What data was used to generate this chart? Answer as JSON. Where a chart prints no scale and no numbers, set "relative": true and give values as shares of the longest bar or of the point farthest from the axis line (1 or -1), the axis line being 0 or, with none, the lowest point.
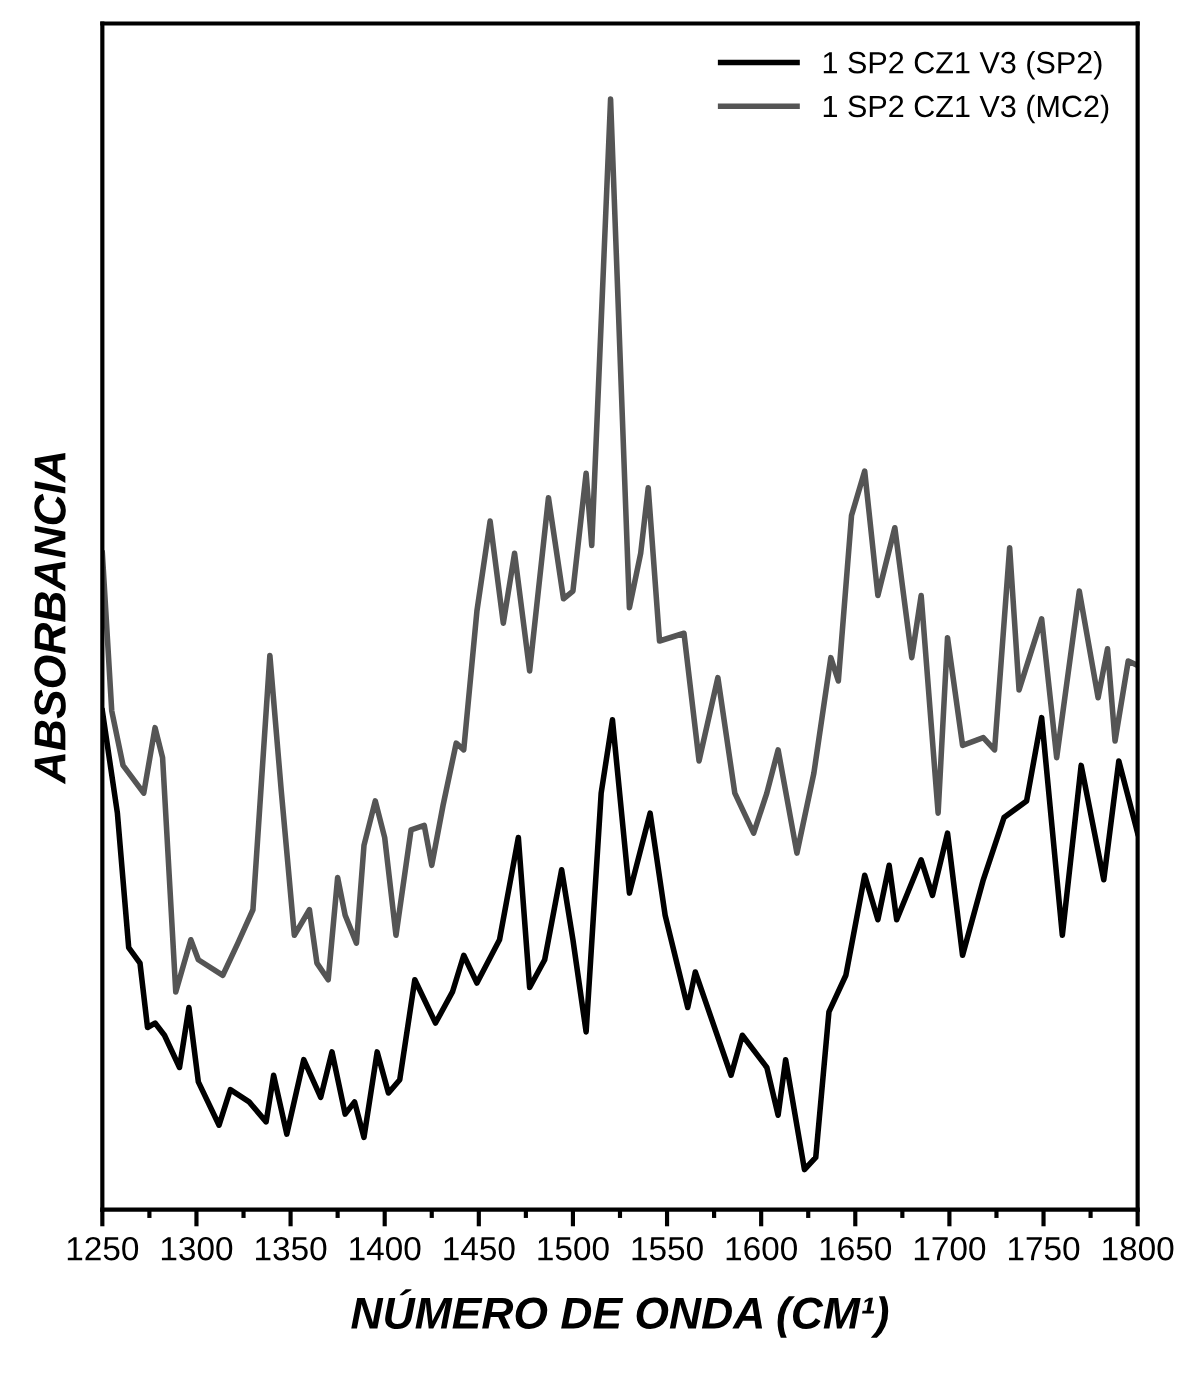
{
  "chart_data": {
    "type": "line",
    "relative": true,
    "xlabel": "NÚMERO DE ONDA (CM¹)",
    "ylabel": "ABSORBANCIA",
    "xlim": [
      1250,
      1800
    ],
    "xticks": [
      1250,
      {
        "value": 1275,
        "label": null
      },
      1300,
      {
        "value": 1325,
        "label": null
      },
      1350,
      {
        "value": 1375,
        "label": null
      },
      1400,
      {
        "value": 1425,
        "label": null
      },
      1450,
      {
        "value": 1475,
        "label": null
      },
      1500,
      {
        "value": 1525,
        "label": null
      },
      1550,
      {
        "value": 1575,
        "label": null
      },
      1600,
      {
        "value": 1625,
        "label": null
      },
      1650,
      {
        "value": 1675,
        "label": null
      },
      1700,
      {
        "value": 1725,
        "label": null
      },
      1750,
      {
        "value": 1775,
        "label": null
      },
      1800
    ],
    "legend": "top right",
    "grid": false,
    "marker": "none",
    "line_style": "solid",
    "series": [
      {
        "name": "1 SP2 CZ1 V3 (SP2)",
        "color": "#000000",
        "x": [
          1250,
          1258,
          1264,
          1270,
          1274,
          1278,
          1283,
          1291,
          1296,
          1301,
          1312,
          1318,
          1328,
          1337,
          1341,
          1348,
          1357,
          1366,
          1372,
          1379,
          1384,
          1389,
          1396,
          1402,
          1408,
          1416,
          1427,
          1436,
          1442,
          1449,
          1461,
          1471,
          1477,
          1485,
          1494,
          1500,
          1507,
          1515,
          1521,
          1530,
          1541,
          1549,
          1561,
          1565,
          1584,
          1590,
          1603,
          1609,
          1613,
          1623,
          1629,
          1636,
          1645,
          1655,
          1662,
          1668,
          1672,
          1685,
          1691,
          1699,
          1707,
          1718,
          1729,
          1741,
          1749,
          1760,
          1770,
          1782,
          1790,
          1800
        ],
        "values": [
          0.449,
          0.357,
          0.236,
          0.222,
          0.164,
          0.168,
          0.157,
          0.128,
          0.182,
          0.115,
          0.076,
          0.108,
          0.097,
          0.079,
          0.121,
          0.068,
          0.135,
          0.101,
          0.142,
          0.086,
          0.097,
          0.065,
          0.142,
          0.105,
          0.117,
          0.207,
          0.168,
          0.196,
          0.229,
          0.204,
          0.243,
          0.335,
          0.2,
          0.225,
          0.306,
          0.243,
          0.16,
          0.375,
          0.441,
          0.285,
          0.357,
          0.265,
          0.182,
          0.214,
          0.121,
          0.157,
          0.128,
          0.085,
          0.135,
          0.036,
          0.047,
          0.178,
          0.211,
          0.301,
          0.261,
          0.31,
          0.261,
          0.315,
          0.283,
          0.339,
          0.229,
          0.297,
          0.353,
          0.368,
          0.443,
          0.247,
          0.4,
          0.297,
          0.404,
          0.339
        ]
      },
      {
        "name": "1 SP2 CZ1 V3 (MC2)",
        "color": "#555555",
        "x": [
          1250,
          1255,
          1261,
          1272,
          1278,
          1282,
          1289,
          1297,
          1301,
          1314,
          1322,
          1330,
          1339,
          1345,
          1352,
          1360,
          1364,
          1370,
          1375,
          1379,
          1385,
          1389,
          1395,
          1400,
          1406,
          1414,
          1421,
          1425,
          1431,
          1438,
          1442,
          1449,
          1456,
          1463,
          1469,
          1477,
          1487,
          1495,
          1500,
          1507,
          1510,
          1520,
          1530,
          1536,
          1540,
          1546,
          1559,
          1567,
          1577,
          1586,
          1596,
          1603,
          1609,
          1619,
          1628,
          1637,
          1641,
          1648,
          1655,
          1662,
          1671,
          1680,
          1685,
          1694,
          1699,
          1707,
          1718,
          1724,
          1732,
          1737,
          1749,
          1757,
          1769,
          1779,
          1784,
          1788,
          1795,
          1800
        ],
        "values": [
          0.591,
          0.449,
          0.4,
          0.375,
          0.434,
          0.407,
          0.196,
          0.243,
          0.225,
          0.211,
          0.24,
          0.27,
          0.499,
          0.378,
          0.247,
          0.27,
          0.222,
          0.207,
          0.299,
          0.265,
          0.24,
          0.328,
          0.368,
          0.335,
          0.247,
          0.342,
          0.346,
          0.31,
          0.364,
          0.42,
          0.414,
          0.539,
          0.62,
          0.528,
          0.591,
          0.485,
          0.641,
          0.55,
          0.557,
          0.663,
          0.598,
          1.0,
          0.542,
          0.591,
          0.65,
          0.512,
          0.519,
          0.404,
          0.479,
          0.375,
          0.339,
          0.375,
          0.414,
          0.321,
          0.393,
          0.497,
          0.476,
          0.625,
          0.665,
          0.553,
          0.614,
          0.497,
          0.553,
          0.357,
          0.515,
          0.418,
          0.425,
          0.414,
          0.596,
          0.468,
          0.532,
          0.407,
          0.557,
          0.461,
          0.505,
          0.422,
          0.494,
          0.49
        ]
      }
    ]
  }
}
